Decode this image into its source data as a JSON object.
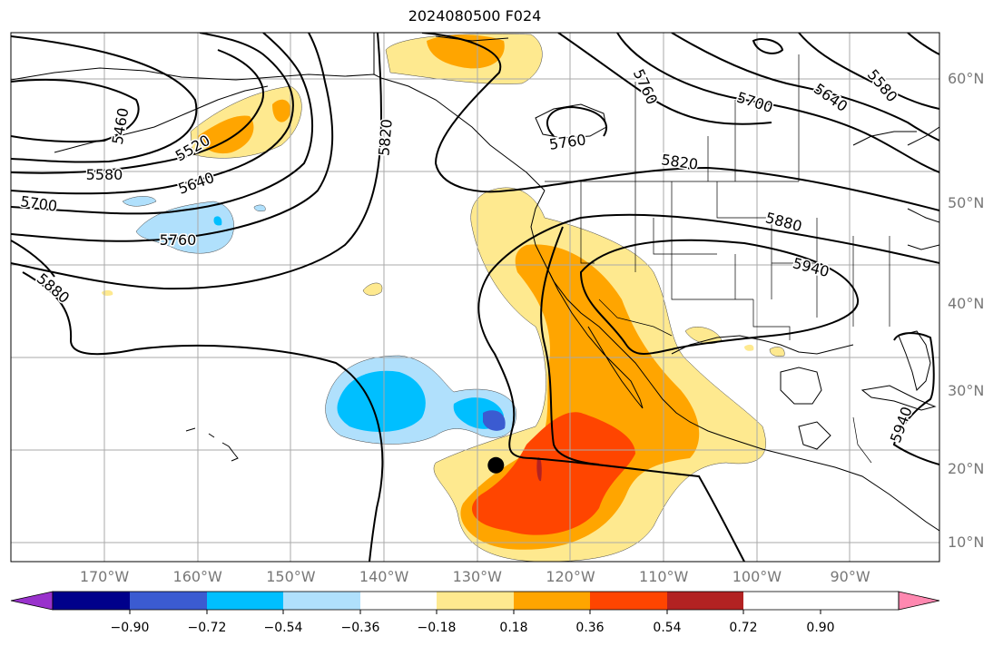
{
  "title": "2024080500 F024",
  "lat_labels": [
    {
      "text": "60°N",
      "lat": 60
    },
    {
      "text": "50°N",
      "lat": 50
    },
    {
      "text": "40°N",
      "lat": 40
    },
    {
      "text": "30°N",
      "lat": 30
    },
    {
      "text": "20°N",
      "lat": 20
    },
    {
      "text": "10°N",
      "lat": 10
    }
  ],
  "lon_labels": [
    {
      "text": "170°W",
      "lon": -170
    },
    {
      "text": "160°W",
      "lon": -160
    },
    {
      "text": "150°W",
      "lon": -150
    },
    {
      "text": "140°W",
      "lon": -140
    },
    {
      "text": "130°W",
      "lon": -130
    },
    {
      "text": "120°W",
      "lon": -120
    },
    {
      "text": "110°W",
      "lon": -110
    },
    {
      "text": "100°W",
      "lon": -100
    },
    {
      "text": "90°W",
      "lon": -90
    }
  ],
  "contour_labels": [
    "5460",
    "5520",
    "5580",
    "5640",
    "5700",
    "5760",
    "5820",
    "5880",
    "5940",
    "5760",
    "5820",
    "5880",
    "5940",
    "5700",
    "5640",
    "5580",
    "5760"
  ],
  "colorbar": {
    "colors": [
      "#9932cc",
      "#00008b",
      "#3b5bd1",
      "#00bfff",
      "#b0e0fc",
      "#ffffff",
      "#fee98f",
      "#ffa500",
      "#ff4500",
      "#b22222",
      "#ff88b0"
    ],
    "tick_labels": [
      "−0.90",
      "−0.72",
      "−0.54",
      "−0.36",
      "−0.18",
      "0.18",
      "0.36",
      "0.54",
      "0.72",
      "0.90"
    ]
  },
  "marker": {
    "lon": -128,
    "lat": 20.5
  }
}
